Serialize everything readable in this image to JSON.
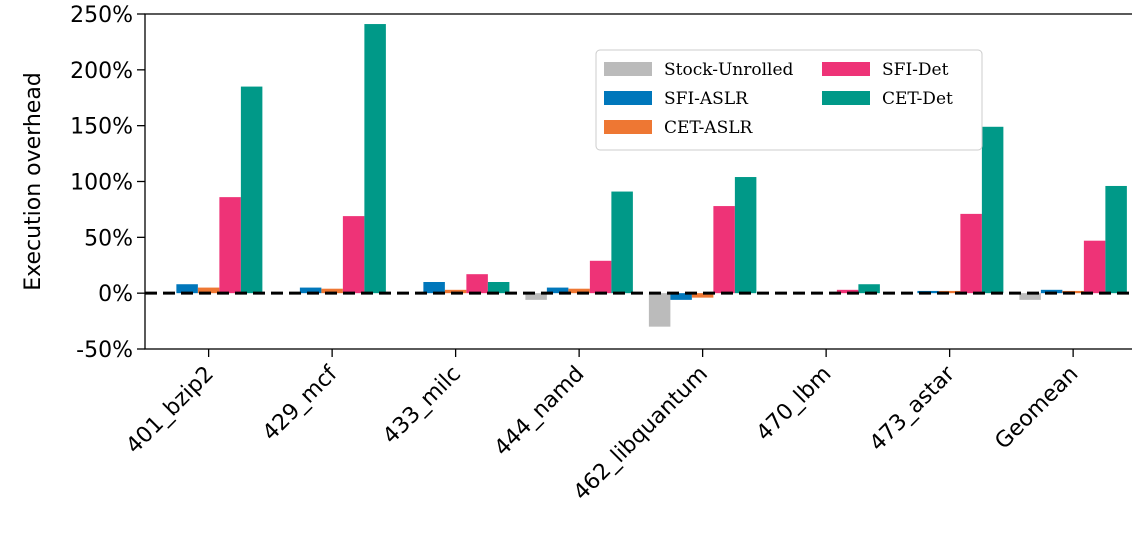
{
  "chart_data": {
    "type": "bar",
    "ylabel": "Execution overhead",
    "ylim": [
      -50,
      250
    ],
    "yticks": [
      -50,
      0,
      50,
      100,
      150,
      200,
      250
    ],
    "ytick_labels": [
      "-50%",
      "0%",
      "50%",
      "100%",
      "150%",
      "200%",
      "250%"
    ],
    "categories": [
      "401_bzip2",
      "429_mcf",
      "433_milc",
      "444_namd",
      "462_libquantum",
      "470_lbm",
      "473_astar",
      "Geomean"
    ],
    "series": [
      {
        "name": "Stock-Unrolled",
        "color": "#bbbbbb",
        "values": [
          0,
          0,
          0,
          -6,
          -30,
          0,
          0,
          -6
        ]
      },
      {
        "name": "SFI-ASLR",
        "color": "#0077bb",
        "values": [
          8,
          5,
          10,
          5,
          -6,
          0,
          2,
          3
        ]
      },
      {
        "name": "CET-ASLR",
        "color": "#ee7733",
        "values": [
          5,
          4,
          3,
          4,
          -4,
          0,
          2,
          2
        ]
      },
      {
        "name": "SFI-Det",
        "color": "#ee3377",
        "values": [
          86,
          69,
          17,
          29,
          78,
          3,
          71,
          47
        ]
      },
      {
        "name": "CET-Det",
        "color": "#009988",
        "values": [
          185,
          241,
          10,
          91,
          104,
          8,
          149,
          96
        ]
      }
    ],
    "reference_line": {
      "value": 0,
      "style": "dashed",
      "color": "#000000"
    },
    "legend": {
      "placement": "upper-center",
      "columns": 2
    }
  }
}
